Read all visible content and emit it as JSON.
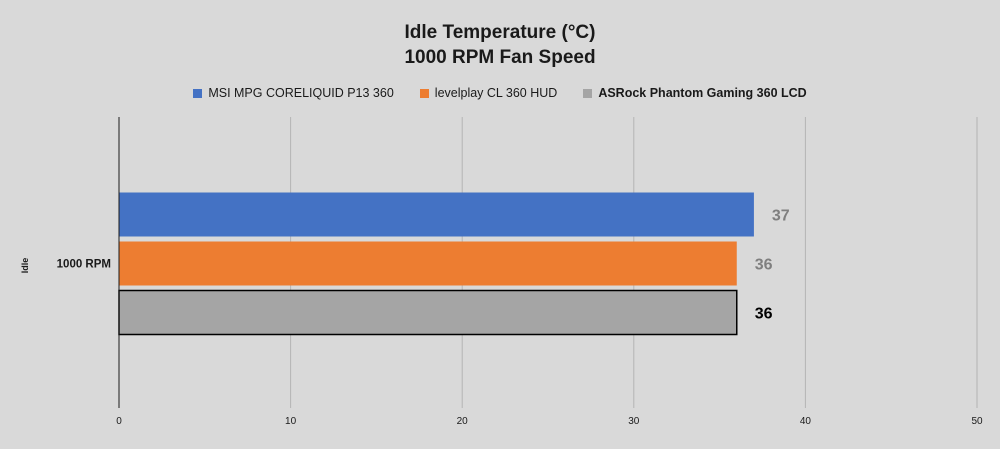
{
  "chart_data": {
    "type": "bar",
    "orientation": "horizontal",
    "title": "Idle Temperature (°C)",
    "subtitle": "1000 RPM Fan Speed",
    "group_label": "Idle",
    "categories": [
      "1000 RPM"
    ],
    "xlim": [
      0,
      50
    ],
    "x_ticks": [
      "0",
      "10",
      "20",
      "30",
      "40",
      "50"
    ],
    "grid": "vertical",
    "legend_position": "top",
    "series": [
      {
        "name": "MSI MPG CORELIQUID P13 360",
        "values": [
          37
        ],
        "labels": [
          "37"
        ],
        "color": "#4472c4",
        "label_color": "#7f7f7f",
        "bold_legend": false,
        "outlined": false
      },
      {
        "name": "levelplay CL 360 HUD",
        "values": [
          36
        ],
        "labels": [
          "36"
        ],
        "color": "#ed7d31",
        "label_color": "#7f7f7f",
        "bold_legend": false,
        "outlined": false
      },
      {
        "name": "ASRock Phantom Gaming 360 LCD",
        "values": [
          36
        ],
        "labels": [
          "36"
        ],
        "color": "#a5a5a5",
        "label_color": "#000000",
        "bold_legend": true,
        "outlined": true
      }
    ]
  }
}
